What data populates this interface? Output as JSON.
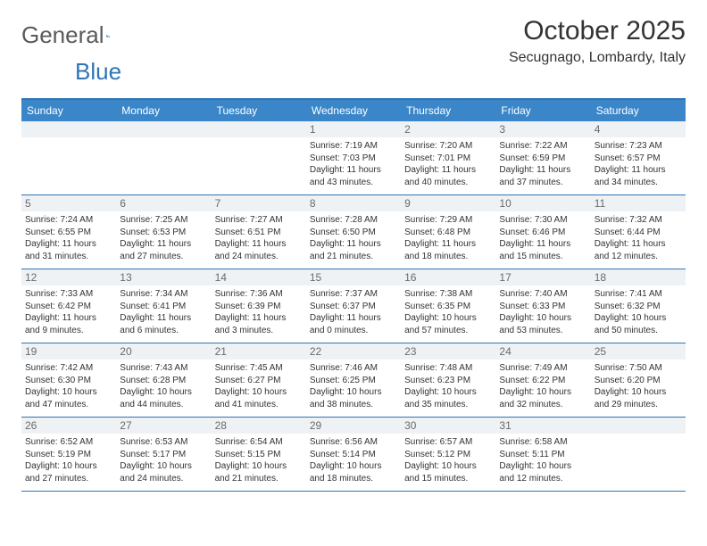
{
  "logo": {
    "text1": "General",
    "text2": "Blue"
  },
  "title": "October 2025",
  "location": "Secugnago, Lombardy, Italy",
  "colors": {
    "header_bg": "#3a86c8",
    "border": "#2f75b5",
    "daynum_bg": "#eef2f5",
    "text": "#333333"
  },
  "day_names": [
    "Sunday",
    "Monday",
    "Tuesday",
    "Wednesday",
    "Thursday",
    "Friday",
    "Saturday"
  ],
  "weeks": [
    [
      {
        "n": "",
        "sr": "",
        "ss": "",
        "dl": ""
      },
      {
        "n": "",
        "sr": "",
        "ss": "",
        "dl": ""
      },
      {
        "n": "",
        "sr": "",
        "ss": "",
        "dl": ""
      },
      {
        "n": "1",
        "sr": "Sunrise: 7:19 AM",
        "ss": "Sunset: 7:03 PM",
        "dl": "Daylight: 11 hours and 43 minutes."
      },
      {
        "n": "2",
        "sr": "Sunrise: 7:20 AM",
        "ss": "Sunset: 7:01 PM",
        "dl": "Daylight: 11 hours and 40 minutes."
      },
      {
        "n": "3",
        "sr": "Sunrise: 7:22 AM",
        "ss": "Sunset: 6:59 PM",
        "dl": "Daylight: 11 hours and 37 minutes."
      },
      {
        "n": "4",
        "sr": "Sunrise: 7:23 AM",
        "ss": "Sunset: 6:57 PM",
        "dl": "Daylight: 11 hours and 34 minutes."
      }
    ],
    [
      {
        "n": "5",
        "sr": "Sunrise: 7:24 AM",
        "ss": "Sunset: 6:55 PM",
        "dl": "Daylight: 11 hours and 31 minutes."
      },
      {
        "n": "6",
        "sr": "Sunrise: 7:25 AM",
        "ss": "Sunset: 6:53 PM",
        "dl": "Daylight: 11 hours and 27 minutes."
      },
      {
        "n": "7",
        "sr": "Sunrise: 7:27 AM",
        "ss": "Sunset: 6:51 PM",
        "dl": "Daylight: 11 hours and 24 minutes."
      },
      {
        "n": "8",
        "sr": "Sunrise: 7:28 AM",
        "ss": "Sunset: 6:50 PM",
        "dl": "Daylight: 11 hours and 21 minutes."
      },
      {
        "n": "9",
        "sr": "Sunrise: 7:29 AM",
        "ss": "Sunset: 6:48 PM",
        "dl": "Daylight: 11 hours and 18 minutes."
      },
      {
        "n": "10",
        "sr": "Sunrise: 7:30 AM",
        "ss": "Sunset: 6:46 PM",
        "dl": "Daylight: 11 hours and 15 minutes."
      },
      {
        "n": "11",
        "sr": "Sunrise: 7:32 AM",
        "ss": "Sunset: 6:44 PM",
        "dl": "Daylight: 11 hours and 12 minutes."
      }
    ],
    [
      {
        "n": "12",
        "sr": "Sunrise: 7:33 AM",
        "ss": "Sunset: 6:42 PM",
        "dl": "Daylight: 11 hours and 9 minutes."
      },
      {
        "n": "13",
        "sr": "Sunrise: 7:34 AM",
        "ss": "Sunset: 6:41 PM",
        "dl": "Daylight: 11 hours and 6 minutes."
      },
      {
        "n": "14",
        "sr": "Sunrise: 7:36 AM",
        "ss": "Sunset: 6:39 PM",
        "dl": "Daylight: 11 hours and 3 minutes."
      },
      {
        "n": "15",
        "sr": "Sunrise: 7:37 AM",
        "ss": "Sunset: 6:37 PM",
        "dl": "Daylight: 11 hours and 0 minutes."
      },
      {
        "n": "16",
        "sr": "Sunrise: 7:38 AM",
        "ss": "Sunset: 6:35 PM",
        "dl": "Daylight: 10 hours and 57 minutes."
      },
      {
        "n": "17",
        "sr": "Sunrise: 7:40 AM",
        "ss": "Sunset: 6:33 PM",
        "dl": "Daylight: 10 hours and 53 minutes."
      },
      {
        "n": "18",
        "sr": "Sunrise: 7:41 AM",
        "ss": "Sunset: 6:32 PM",
        "dl": "Daylight: 10 hours and 50 minutes."
      }
    ],
    [
      {
        "n": "19",
        "sr": "Sunrise: 7:42 AM",
        "ss": "Sunset: 6:30 PM",
        "dl": "Daylight: 10 hours and 47 minutes."
      },
      {
        "n": "20",
        "sr": "Sunrise: 7:43 AM",
        "ss": "Sunset: 6:28 PM",
        "dl": "Daylight: 10 hours and 44 minutes."
      },
      {
        "n": "21",
        "sr": "Sunrise: 7:45 AM",
        "ss": "Sunset: 6:27 PM",
        "dl": "Daylight: 10 hours and 41 minutes."
      },
      {
        "n": "22",
        "sr": "Sunrise: 7:46 AM",
        "ss": "Sunset: 6:25 PM",
        "dl": "Daylight: 10 hours and 38 minutes."
      },
      {
        "n": "23",
        "sr": "Sunrise: 7:48 AM",
        "ss": "Sunset: 6:23 PM",
        "dl": "Daylight: 10 hours and 35 minutes."
      },
      {
        "n": "24",
        "sr": "Sunrise: 7:49 AM",
        "ss": "Sunset: 6:22 PM",
        "dl": "Daylight: 10 hours and 32 minutes."
      },
      {
        "n": "25",
        "sr": "Sunrise: 7:50 AM",
        "ss": "Sunset: 6:20 PM",
        "dl": "Daylight: 10 hours and 29 minutes."
      }
    ],
    [
      {
        "n": "26",
        "sr": "Sunrise: 6:52 AM",
        "ss": "Sunset: 5:19 PM",
        "dl": "Daylight: 10 hours and 27 minutes."
      },
      {
        "n": "27",
        "sr": "Sunrise: 6:53 AM",
        "ss": "Sunset: 5:17 PM",
        "dl": "Daylight: 10 hours and 24 minutes."
      },
      {
        "n": "28",
        "sr": "Sunrise: 6:54 AM",
        "ss": "Sunset: 5:15 PM",
        "dl": "Daylight: 10 hours and 21 minutes."
      },
      {
        "n": "29",
        "sr": "Sunrise: 6:56 AM",
        "ss": "Sunset: 5:14 PM",
        "dl": "Daylight: 10 hours and 18 minutes."
      },
      {
        "n": "30",
        "sr": "Sunrise: 6:57 AM",
        "ss": "Sunset: 5:12 PM",
        "dl": "Daylight: 10 hours and 15 minutes."
      },
      {
        "n": "31",
        "sr": "Sunrise: 6:58 AM",
        "ss": "Sunset: 5:11 PM",
        "dl": "Daylight: 10 hours and 12 minutes."
      },
      {
        "n": "",
        "sr": "",
        "ss": "",
        "dl": ""
      }
    ]
  ]
}
